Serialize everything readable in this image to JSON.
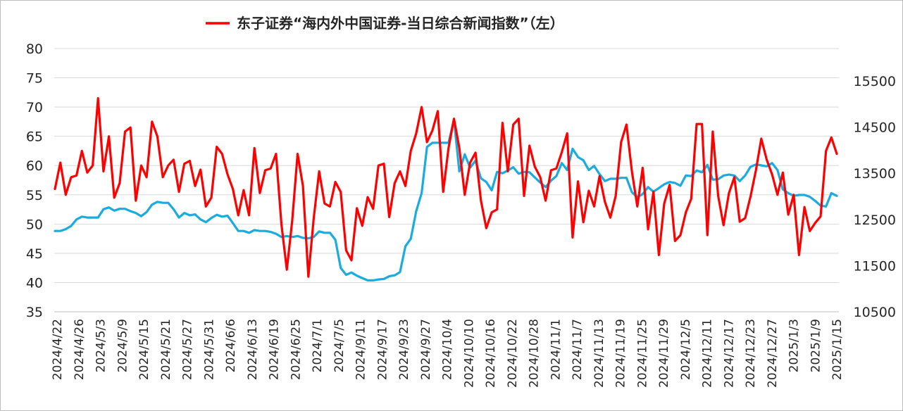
{
  "chart_data": {
    "type": "line",
    "title": "东子证券“海内外中国证券-当日综合新闻指数”（左）",
    "legend_position": "top",
    "grid": true,
    "left_axis": {
      "min": 35,
      "max": 80,
      "ticks": [
        "80",
        "75",
        "70",
        "65",
        "60",
        "55",
        "50",
        "45",
        "40",
        "35"
      ]
    },
    "right_axis": {
      "min": 10500,
      "max": 16200,
      "ticks": [
        "15500",
        "14500",
        "13500",
        "12500",
        "11500",
        "10500"
      ]
    },
    "x_tick_labels": [
      "2024/4/22",
      "2024/4/26",
      "2024/5/3",
      "2024/5/9",
      "2024/5/15",
      "2024/5/21",
      "2024/5/27",
      "2024/5/31",
      "2024/6/6",
      "2024/6/13",
      "2024/6/19",
      "2024/6/25",
      "2024/7/1",
      "2024/7/5",
      "2024/9/11",
      "2024/9/17",
      "2024/9/23",
      "2024/9/27",
      "2024/10/4",
      "2024/10/10",
      "2024/10/16",
      "2024/10/22",
      "2024/10/28",
      "2024/11/1",
      "2024/11/7",
      "2024/11/13",
      "2024/11/19",
      "2024/11/25",
      "2024/11/29",
      "2024/12/5",
      "2024/12/11",
      "2024/12/17",
      "2024/12/23",
      "2024/12/27",
      "2025/1/3",
      "2025/1/9",
      "2025/1/15"
    ],
    "series": [
      {
        "name": "东子证券“海内外中国证券-当日综合新闻指数”（左）",
        "axis": "left",
        "color": "#ff0000",
        "values": [
          56,
          60.5,
          55,
          58,
          58.3,
          62.5,
          58.8,
          60,
          71.5,
          59,
          65,
          54.5,
          57,
          65.8,
          66.5,
          54,
          60,
          58,
          67.5,
          65,
          58,
          60,
          61,
          55.5,
          60.3,
          60.8,
          56.5,
          59.3,
          53,
          54.5,
          63.2,
          62,
          58.5,
          56,
          51.5,
          55.8,
          51.5,
          63,
          55.3,
          59.2,
          59.5,
          62,
          50,
          42.2,
          50.5,
          62,
          56.5,
          41,
          51,
          59,
          53.5,
          53,
          57.2,
          55.5,
          45.5,
          43.8,
          52.7,
          49.7,
          54.6,
          52.6,
          60,
          60.3,
          51.2,
          57,
          59,
          56.5,
          62.5,
          65.5,
          70,
          64,
          66,
          69.3,
          55.5,
          63,
          68,
          63,
          55,
          60.5,
          62.2,
          54,
          49.3,
          52,
          52.5,
          67.3,
          59,
          67,
          68,
          54.8,
          63.4,
          59.8,
          58,
          54,
          59.2,
          59.5,
          62.3,
          65.5,
          47.7,
          57.3,
          50.3,
          55.7,
          53,
          58.2,
          53.8,
          51.1,
          54.8,
          64,
          67,
          59,
          53,
          59.6,
          49.1,
          55.5,
          44.7,
          53.5,
          56.7,
          47.1,
          48.1,
          52,
          54.3,
          67.1,
          67.1,
          48.1,
          65.8,
          54.8,
          49.8,
          55.3,
          58,
          50.4,
          51,
          54.7,
          59.2,
          64.6,
          61,
          58.5,
          55,
          58.8,
          51.6,
          55,
          44.7,
          52.9,
          48.8,
          50.2,
          51.3,
          62.5,
          64.8,
          62
        ]
      },
      {
        "name": "",
        "axis": "right",
        "color": "#1aabe0",
        "values": [
          12250,
          12250,
          12290,
          12360,
          12500,
          12560,
          12540,
          12540,
          12540,
          12720,
          12760,
          12690,
          12730,
          12730,
          12680,
          12640,
          12570,
          12660,
          12820,
          12880,
          12860,
          12860,
          12720,
          12540,
          12640,
          12590,
          12610,
          12500,
          12440,
          12530,
          12600,
          12560,
          12580,
          12420,
          12250,
          12250,
          12210,
          12270,
          12250,
          12250,
          12230,
          12190,
          12120,
          12140,
          12120,
          12140,
          12100,
          12090,
          12120,
          12240,
          12210,
          12210,
          12060,
          11450,
          11300,
          11350,
          11280,
          11230,
          11180,
          11180,
          11200,
          11210,
          11270,
          11290,
          11360,
          11920,
          12080,
          12680,
          13070,
          14070,
          14160,
          14160,
          14160,
          14160,
          14660,
          13540,
          13910,
          13620,
          13770,
          13390,
          13310,
          13130,
          13530,
          13500,
          13560,
          13630,
          13490,
          13530,
          13520,
          13410,
          13300,
          13200,
          13340,
          13440,
          13720,
          13570,
          14030,
          13850,
          13780,
          13570,
          13660,
          13480,
          13330,
          13380,
          13380,
          13400,
          13400,
          13090,
          12980,
          13050,
          13200,
          13100,
          13180,
          13260,
          13310,
          13290,
          13230,
          13450,
          13440,
          13560,
          13520,
          13680,
          13360,
          13370,
          13450,
          13470,
          13450,
          13330,
          13450,
          13640,
          13690,
          13670,
          13650,
          13720,
          13570,
          13150,
          13070,
          13010,
          13030,
          13030,
          12990,
          12900,
          12800,
          12780,
          13070,
          13010
        ]
      }
    ]
  }
}
